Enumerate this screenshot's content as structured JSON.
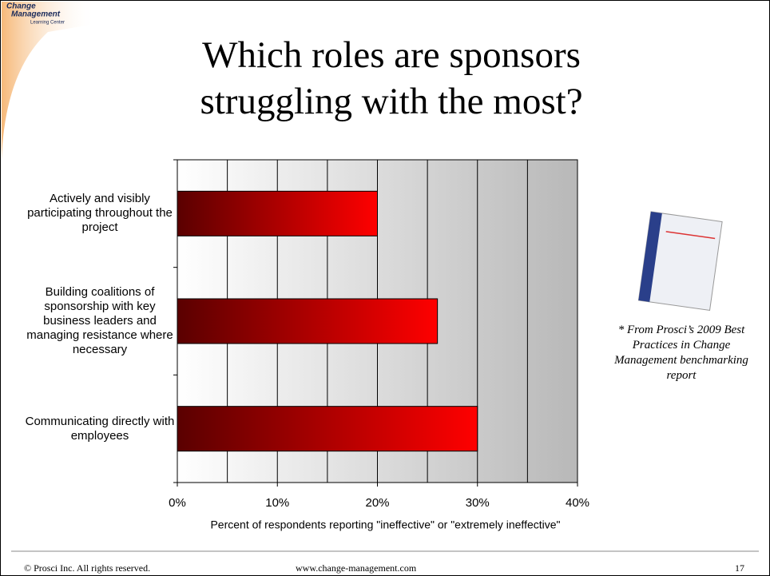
{
  "logo": {
    "line1": "Change",
    "line2": "Management",
    "line3": "Learning Center"
  },
  "chart_data": {
    "type": "hbar",
    "title": "Which roles are sponsors struggling with the most?",
    "categories": [
      "Actively and visibly participating throughout the project",
      "Building coalitions of sponsorship with key business leaders and managing resistance where necessary",
      "Communicating directly with employees"
    ],
    "values": [
      20,
      26,
      30
    ],
    "color": "#ff0000",
    "xlim": [
      0,
      40
    ],
    "xticks": [
      {
        "value": 0,
        "label": "0%"
      },
      {
        "value": 10,
        "label": "10%"
      },
      {
        "value": 20,
        "label": "20%"
      },
      {
        "value": 30,
        "label": "30%"
      },
      {
        "value": 40,
        "label": "40%"
      }
    ],
    "minor_grid": [
      5,
      15,
      25,
      35
    ],
    "grid": true,
    "xlabel": "Percent of respondents reporting \"ineffective\" or \"extremely ineffective\""
  },
  "note": "* From Prosci’s 2009 Best Practices in Change Management benchmarking report",
  "footer": {
    "copyright": "© Prosci Inc. All rights reserved.",
    "url": "www.change-management.com",
    "page": "17"
  }
}
